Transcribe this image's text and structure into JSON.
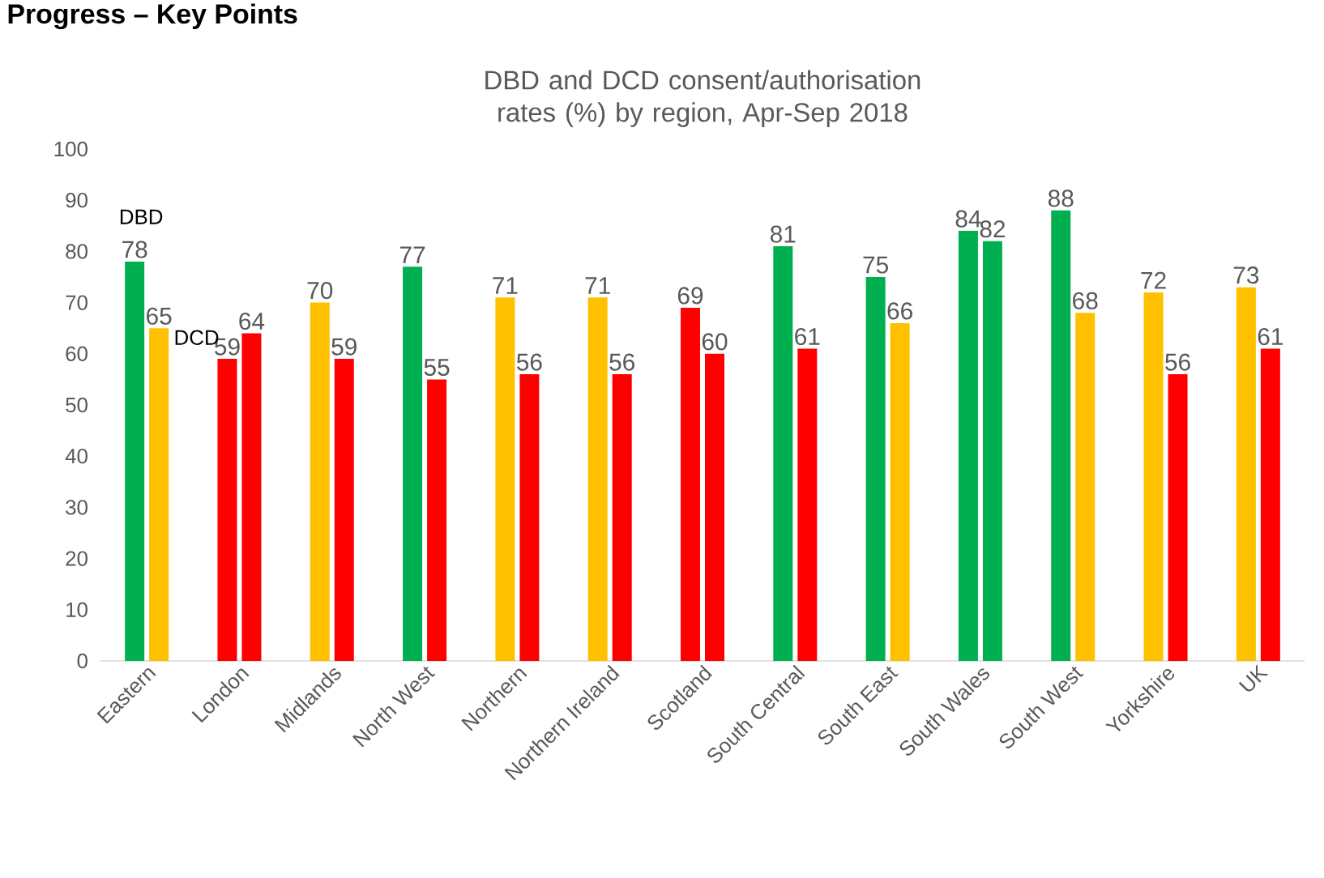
{
  "chart_data": {
    "type": "bar",
    "title": "DBD and DCD consent/authorisation rates (%) by region, Apr-Sep 2018",
    "annotations": [
      "Progress – Key Points"
    ],
    "categories": [
      "Eastern",
      "London",
      "Midlands",
      "North West",
      "Northern",
      "Northern Ireland",
      "Scotland",
      "South Central",
      "South East",
      "South Wales",
      "South West",
      "Yorkshire",
      "UK"
    ],
    "series": [
      {
        "name": "DBD",
        "values": [
          78,
          59,
          70,
          77,
          71,
          71,
          69,
          81,
          75,
          84,
          88,
          72,
          73
        ],
        "colors": [
          "#00b050",
          "#ff0000",
          "#ffc000",
          "#00b050",
          "#ffc000",
          "#ffc000",
          "#ff0000",
          "#00b050",
          "#00b050",
          "#00b050",
          "#00b050",
          "#ffc000",
          "#ffc000"
        ]
      },
      {
        "name": "DCD",
        "values": [
          65,
          64,
          59,
          55,
          56,
          56,
          60,
          61,
          66,
          82,
          68,
          56,
          61
        ],
        "colors": [
          "#ffc000",
          "#ff0000",
          "#ff0000",
          "#ff0000",
          "#ff0000",
          "#ff0000",
          "#ff0000",
          "#ff0000",
          "#ffc000",
          "#00b050",
          "#ffc000",
          "#ff0000",
          "#ff0000"
        ]
      }
    ],
    "ylim": [
      0,
      100
    ],
    "yticks": [
      0,
      10,
      20,
      30,
      40,
      50,
      60,
      70,
      80,
      90,
      100
    ],
    "data_labels": true,
    "legend": false,
    "grid": false
  }
}
